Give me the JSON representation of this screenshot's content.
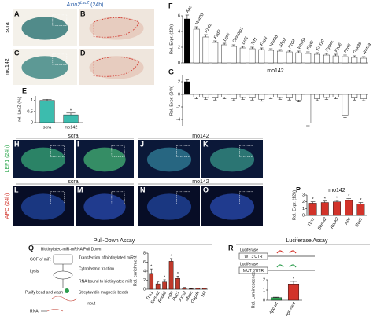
{
  "panels": {
    "letters": [
      "A",
      "B",
      "C",
      "D",
      "H",
      "I",
      "J",
      "K",
      "L",
      "M",
      "N",
      "O"
    ],
    "conditions": [
      "scra",
      "mo142"
    ],
    "reporter": {
      "gene": "Axin2",
      "allele": "LacZ",
      "time": "(24h)"
    },
    "lef1": "LEF1 (24h)",
    "apc": "APC (24h)"
  },
  "pulldown": {
    "panel": "Q",
    "title": "Pull-Down Assay",
    "steps": [
      "Biotinylated-miR-mRNA Pull Down",
      "GOF of miR",
      "Transfection of biotinylated miR",
      "Lysis",
      "Cytoplasmic fraction",
      "RNA bound to biotinylated miR",
      "Purify bead and wash",
      "Streptavidin magnetic beads",
      "Input",
      "RNA"
    ]
  },
  "luciferase": {
    "panel": "R",
    "title": "Luciferase Assay",
    "construct": "Luciferase",
    "utrs": [
      "WT 3'UTR",
      "MUT 3'UTR"
    ]
  },
  "chart_data": [
    {
      "type": "bar",
      "panel": "E",
      "ylabel": "rel. LacZ (%)",
      "categories": [
        "scra",
        "mo142"
      ],
      "values": [
        1.0,
        0.35
      ],
      "errors": [
        0.05,
        0.08
      ],
      "colors": [
        "#3cbcae",
        "#3cbcae"
      ],
      "stars": [
        null,
        "*"
      ],
      "ylim": [
        0,
        1.2
      ],
      "yticks": [
        0,
        0.5,
        1
      ]
    },
    {
      "type": "bar",
      "panel": "F",
      "ylabel": "Rel. Expr. (12h)",
      "categories": [
        "Apc",
        "Wnt7b",
        "Fzd1",
        "Fzd2",
        "Lrp6",
        "Ctnnbip1",
        "Lef1",
        "Tcf1",
        "Fzd3",
        "Wnt8b",
        "Sfrp2",
        "Fzd4",
        "Wnt5b",
        "Fzd9",
        "Fzd10",
        "Pygo1",
        "Fzd6",
        "Fzd5",
        "Gsk3b",
        "Wnt5a"
      ],
      "values": [
        5.6,
        4.3,
        3.3,
        2.6,
        2.3,
        2.1,
        1.9,
        1.8,
        1.7,
        1.6,
        1.5,
        1.4,
        1.3,
        1.2,
        1.1,
        1.0,
        0.9,
        0.8,
        0.7,
        0.6
      ],
      "errors": [
        0.5,
        0.3,
        0.3,
        0.2,
        0.2,
        0.2,
        0.2,
        0.2,
        0.2,
        0.2,
        0.2,
        0.2,
        0.2,
        0.2,
        0.2,
        0.2,
        0.2,
        0.2,
        0.2,
        0.2
      ],
      "colors": [
        "#000",
        "#fff",
        "#fff",
        "#fff",
        "#fff",
        "#fff",
        "#fff",
        "#fff",
        "#fff",
        "#fff",
        "#fff",
        "#fff",
        "#fff",
        "#fff",
        "#fff",
        "#fff",
        "#fff",
        "#fff",
        "#fff",
        "#fff"
      ],
      "ylim": [
        0,
        6
      ],
      "yticks": [
        0,
        2,
        4,
        6
      ]
    },
    {
      "type": "bar",
      "panel": "G",
      "title": "mo142",
      "ylabel": "Rel. Expr. (24h)",
      "values": [
        2.0,
        -0.4,
        -0.5,
        -0.6,
        -0.4,
        -0.7,
        -0.5,
        -0.6,
        -0.8,
        -0.4,
        -0.5,
        -0.6,
        -0.9,
        -4.6,
        -0.7,
        -0.5,
        -0.4,
        -3.3,
        -0.6,
        -0.7
      ],
      "errors": [
        0.3,
        0.3,
        0.3,
        0.3,
        0.3,
        0.3,
        0.3,
        0.3,
        0.3,
        0.3,
        0.3,
        0.3,
        0.3,
        0.4,
        0.3,
        0.3,
        0.3,
        0.4,
        0.3,
        0.3
      ],
      "colors": [
        "#000",
        "#fff",
        "#fff",
        "#fff",
        "#fff",
        "#fff",
        "#fff",
        "#fff",
        "#fff",
        "#fff",
        "#fff",
        "#fff",
        "#fff",
        "#fff",
        "#fff",
        "#fff",
        "#fff",
        "#fff",
        "#fff",
        "#fff"
      ],
      "ylim": [
        -5,
        3
      ],
      "yticks": [
        -4,
        -2,
        0,
        2
      ]
    },
    {
      "type": "bar",
      "panel": "P",
      "title": "mo142",
      "ylabel": "Rel. Expr. (12h)",
      "categories": [
        "Tbx1",
        "Sema2",
        "Rock2",
        "Apc",
        "Rac1"
      ],
      "values": [
        1.8,
        1.9,
        2.0,
        2.2,
        1.7
      ],
      "errors": [
        0.2,
        0.2,
        0.2,
        0.3,
        0.2
      ],
      "colors": [
        "#d2332a",
        "#d2332a",
        "#d2332a",
        "#d2332a",
        "#d2332a"
      ],
      "stars": [
        "*",
        "*",
        "*",
        "*",
        "*"
      ],
      "ylim": [
        0,
        3
      ],
      "yticks": [
        0,
        1,
        2,
        3
      ]
    },
    {
      "type": "bar",
      "ylabel": "Rel. enrichment",
      "categories": [
        "Tbx1",
        "Sema2",
        "Rock2",
        "Apc",
        "Rac1",
        "Axin2",
        "Myon",
        "Gapdh",
        "H4"
      ],
      "values": [
        3.5,
        1.2,
        1.6,
        6.2,
        2.4,
        0.3,
        0.1,
        0.2,
        0.2
      ],
      "errors": [
        1.0,
        0.4,
        0.5,
        0.6,
        0.5,
        0.1,
        0.05,
        0.1,
        0.1
      ],
      "colors": [
        "#c0392b",
        "#c0392b",
        "#c0392b",
        "#c0392b",
        "#c0392b",
        "#c0392b",
        "#c0392b",
        "#c0392b",
        "#c0392b"
      ],
      "stars": [
        "*",
        null,
        "*",
        "*",
        "*",
        null,
        null,
        null,
        null
      ],
      "ylim": [
        0,
        8
      ],
      "yticks": [
        0,
        2,
        4,
        6,
        8
      ]
    },
    {
      "type": "bar",
      "ylabel": "Rel. Luminescence",
      "categories": [
        "Apc-wt",
        "Apc-mut"
      ],
      "values": [
        0.25,
        1.6
      ],
      "errors": [
        0.05,
        0.25
      ],
      "colors": [
        "#2e9e4f",
        "#d2332a"
      ],
      "stars": [
        null,
        "*"
      ],
      "ylim": [
        0,
        2
      ],
      "yticks": [
        0,
        1,
        2
      ]
    }
  ]
}
